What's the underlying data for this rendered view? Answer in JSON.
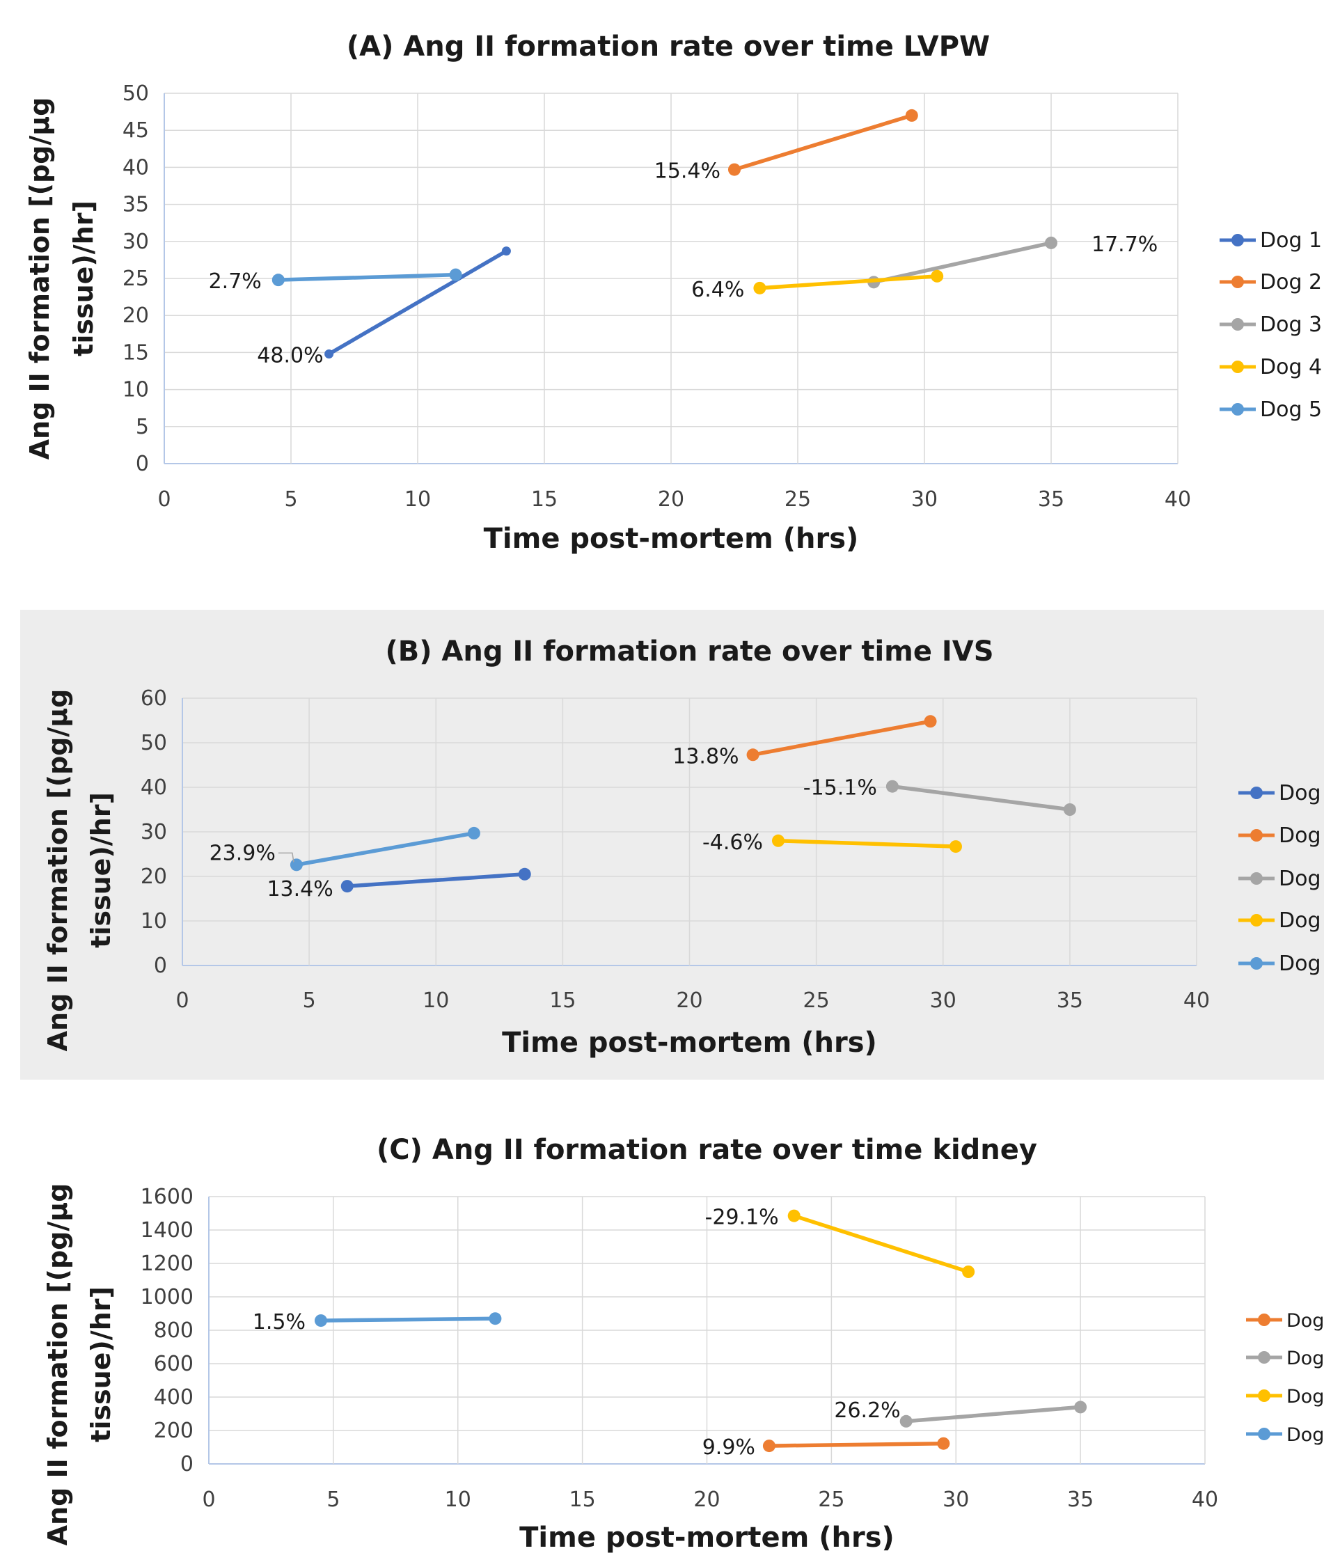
{
  "chart_data": [
    {
      "type": "line",
      "title": "(A) Ang II formation rate over time LVPW",
      "xlabel": "Time post-mortem (hrs)",
      "ylabel": "Ang II formation [(pg/µg tissue)/hr]",
      "xlim": [
        0,
        40
      ],
      "ylim": [
        0,
        50
      ],
      "xticks": [
        "0",
        "5",
        "10",
        "15",
        "20",
        "25",
        "30",
        "35",
        "40"
      ],
      "yticks": [
        "0",
        "5",
        "10",
        "15",
        "20",
        "25",
        "30",
        "35",
        "40",
        "45",
        "50"
      ],
      "grid": true,
      "legend_position": "right",
      "series": [
        {
          "name": "Dog 1",
          "color": "#4472C4",
          "x": [
            6.5,
            13.5
          ],
          "y": [
            14.8,
            28.7
          ],
          "label": "48.0%"
        },
        {
          "name": "Dog 2",
          "color": "#ED7D31",
          "x": [
            22.5,
            29.5
          ],
          "y": [
            39.7,
            47.0
          ],
          "label": "15.4%"
        },
        {
          "name": "Dog 3",
          "color": "#A5A5A5",
          "x": [
            28.0,
            35.0
          ],
          "y": [
            24.5,
            29.8
          ],
          "label": "17.7%"
        },
        {
          "name": "Dog 4",
          "color": "#FFC000",
          "x": [
            23.5,
            30.5
          ],
          "y": [
            23.7,
            25.3
          ],
          "label": "6.4%"
        },
        {
          "name": "Dog 5",
          "color": "#5B9BD5",
          "x": [
            4.5,
            11.5
          ],
          "y": [
            24.8,
            25.5
          ],
          "label": "2.7%"
        }
      ]
    },
    {
      "type": "line",
      "title": "(B) Ang II formation rate over time IVS",
      "xlabel": "Time post-mortem (hrs)",
      "ylabel": "Ang II formation [(pg/µg tissue)/hr]",
      "xlim": [
        0,
        40
      ],
      "ylim": [
        0,
        60
      ],
      "xticks": [
        "0",
        "5",
        "10",
        "15",
        "20",
        "25",
        "30",
        "35",
        "40"
      ],
      "yticks": [
        "0",
        "10",
        "20",
        "30",
        "40",
        "50",
        "60"
      ],
      "grid": true,
      "legend_position": "right",
      "series": [
        {
          "name": "Dog",
          "color": "#4472C4",
          "x": [
            6.5,
            13.5
          ],
          "y": [
            17.8,
            20.5
          ],
          "label": "13.4%"
        },
        {
          "name": "Dog",
          "color": "#ED7D31",
          "x": [
            22.5,
            29.5
          ],
          "y": [
            47.3,
            54.8
          ],
          "label": "13.8%"
        },
        {
          "name": "Dog",
          "color": "#A5A5A5",
          "x": [
            28.0,
            35.0
          ],
          "y": [
            40.2,
            35.0
          ],
          "label": "-15.1%"
        },
        {
          "name": "Dog",
          "color": "#FFC000",
          "x": [
            23.5,
            30.5
          ],
          "y": [
            28.0,
            26.7
          ],
          "label": "-4.6%"
        },
        {
          "name": "Dog",
          "color": "#5B9BD5",
          "x": [
            4.5,
            11.5
          ],
          "y": [
            22.6,
            29.7
          ],
          "label": "23.9%"
        }
      ]
    },
    {
      "type": "line",
      "title": "(C) Ang II formation rate over time kidney",
      "xlabel": "Time post-mortem (hrs)",
      "ylabel": "Ang II formation [(pg/µg tissue)/hr]",
      "xlim": [
        0,
        40
      ],
      "ylim": [
        0,
        1600
      ],
      "xticks": [
        "0",
        "5",
        "10",
        "15",
        "20",
        "25",
        "30",
        "35",
        "40"
      ],
      "yticks": [
        "0",
        "200",
        "400",
        "600",
        "800",
        "1000",
        "1200",
        "1400",
        "1600"
      ],
      "grid": true,
      "legend_position": "right",
      "series": [
        {
          "name": "Dog",
          "color": "#ED7D31",
          "x": [
            22.5,
            29.5
          ],
          "y": [
            108,
            122
          ],
          "label": "9.9%"
        },
        {
          "name": "Dog",
          "color": "#A5A5A5",
          "x": [
            28.0,
            35.0
          ],
          "y": [
            255,
            340
          ],
          "label": "26.2%"
        },
        {
          "name": "Dog",
          "color": "#FFC000",
          "x": [
            23.5,
            30.5
          ],
          "y": [
            1485,
            1150
          ],
          "label": "-29.1%"
        },
        {
          "name": "Dog",
          "color": "#5B9BD5",
          "x": [
            4.5,
            11.5
          ],
          "y": [
            858,
            870
          ],
          "label": "1.5%"
        }
      ]
    }
  ]
}
